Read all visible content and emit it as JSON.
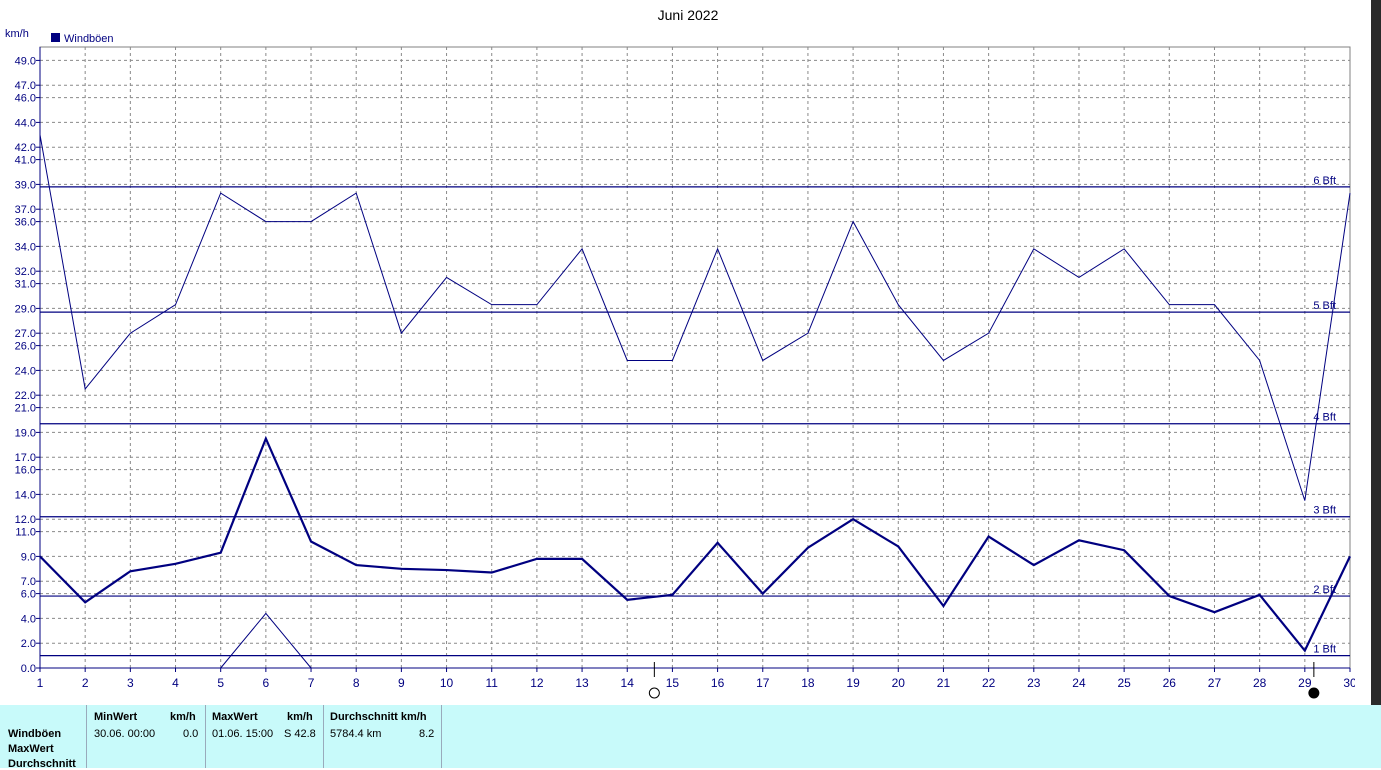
{
  "chart_data": {
    "type": "line",
    "title": "Juni 2022",
    "ylabel": "km/h",
    "legend": "Windböen",
    "legend_color": "#000080",
    "x": [
      1,
      2,
      3,
      4,
      5,
      6,
      7,
      8,
      9,
      10,
      11,
      12,
      13,
      14,
      15,
      16,
      17,
      18,
      19,
      20,
      21,
      22,
      23,
      24,
      25,
      26,
      27,
      28,
      29,
      30
    ],
    "xlim": [
      1,
      30
    ],
    "ylim": [
      0,
      51
    ],
    "yticks": [
      "0.0",
      "2.0",
      "4.0",
      "6.0",
      "7.0",
      "9.0",
      "11.0",
      "12.0",
      "14.0",
      "16.0",
      "17.0",
      "19.0",
      "21.0",
      "22.0",
      "24.0",
      "26.0",
      "27.0",
      "29.0",
      "31.0",
      "32.0",
      "34.0",
      "36.0",
      "37.0",
      "39.0",
      "41.0",
      "42.0",
      "44.0",
      "46.0",
      "47.0",
      "49.0"
    ],
    "grid": true,
    "series": [
      {
        "style": "thin",
        "color": "#000080",
        "values": [
          43.0,
          22.5,
          27.0,
          29.3,
          38.3,
          36.0,
          36.0,
          38.3,
          27.0,
          31.5,
          29.3,
          29.3,
          33.8,
          24.8,
          24.8,
          33.8,
          24.8,
          27.0,
          36.0,
          29.3,
          24.8,
          27.0,
          33.8,
          31.5,
          33.8,
          29.3,
          29.3,
          24.8,
          13.5,
          38.3
        ]
      },
      {
        "style": "thick",
        "color": "#000080",
        "values": [
          9.0,
          5.3,
          7.8,
          8.4,
          9.3,
          18.5,
          10.2,
          8.3,
          8.0,
          7.9,
          7.7,
          8.8,
          8.8,
          5.5,
          5.9,
          10.1,
          6.0,
          9.7,
          12.0,
          9.8,
          5.0,
          10.6,
          8.3,
          10.3,
          9.5,
          5.8,
          4.5,
          5.9,
          1.4,
          9.0
        ]
      },
      {
        "style": "thin",
        "color": "#000080",
        "x": [
          5,
          6,
          7
        ],
        "values": [
          0.0,
          4.4,
          0.0
        ]
      }
    ],
    "beaufort": [
      {
        "label": "1 Bft",
        "value": 1.0
      },
      {
        "label": "2 Bft",
        "value": 5.8
      },
      {
        "label": "3 Bft",
        "value": 12.2
      },
      {
        "label": "4 Bft",
        "value": 19.7
      },
      {
        "label": "5 Bft",
        "value": 28.7
      },
      {
        "label": "6 Bft",
        "value": 38.8
      }
    ],
    "moon": [
      {
        "x": 14.6,
        "phase": "full"
      },
      {
        "x": 29.2,
        "phase": "new"
      }
    ]
  },
  "panel": {
    "rows": [
      "Windböen",
      "MaxWert",
      "Durchschnitt"
    ],
    "min_header": "MinWert",
    "min_unit": "km/h",
    "min_date": "30.06.  00:00",
    "min_value": "0.0",
    "max_header": "MaxWert",
    "max_unit": "km/h",
    "max_date": "01.06.  15:00",
    "max_value": "S 42.8",
    "avg_header": "Durchschnitt km/h",
    "avg_km": "5784.4 km",
    "avg_value": "8.2"
  }
}
